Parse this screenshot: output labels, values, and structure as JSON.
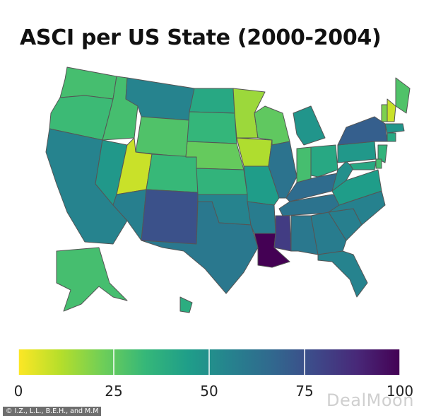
{
  "title": "ASCI per US State (2000-2004)",
  "credit": "© I.Z., L.L., B.E.H., and M.M",
  "watermark": "DealMoon",
  "legend": {
    "min": 0,
    "max": 100,
    "ticks": [
      "0",
      "25",
      "50",
      "75",
      "100"
    ],
    "tick_values": [
      0,
      25,
      50,
      75,
      100
    ]
  },
  "colors": {
    "scale": [
      "#fde725",
      "#b5de2b",
      "#6ece58",
      "#35b779",
      "#1f9e89",
      "#26828e",
      "#31688e",
      "#3e4989",
      "#482878",
      "#440154"
    ],
    "border": "#555555"
  },
  "states": [
    {
      "code": "WA",
      "value": 30
    },
    {
      "code": "OR",
      "value": 32
    },
    {
      "code": "CA",
      "value": 55
    },
    {
      "code": "NV",
      "value": 47
    },
    {
      "code": "ID",
      "value": 30
    },
    {
      "code": "MT",
      "value": 55
    },
    {
      "code": "WY",
      "value": 28
    },
    {
      "code": "UT",
      "value": 8
    },
    {
      "code": "AZ",
      "value": 57
    },
    {
      "code": "CO",
      "value": 33
    },
    {
      "code": "NM",
      "value": 75
    },
    {
      "code": "ND",
      "value": 40
    },
    {
      "code": "SD",
      "value": 34
    },
    {
      "code": "NE",
      "value": 24
    },
    {
      "code": "KS",
      "value": 35
    },
    {
      "code": "OK",
      "value": 55
    },
    {
      "code": "TX",
      "value": 60
    },
    {
      "code": "MN",
      "value": 15
    },
    {
      "code": "IA",
      "value": 12
    },
    {
      "code": "MO",
      "value": 45
    },
    {
      "code": "AR",
      "value": 58
    },
    {
      "code": "LA",
      "value": 100
    },
    {
      "code": "WI",
      "value": 25
    },
    {
      "code": "IL",
      "value": 62
    },
    {
      "code": "MI",
      "value": 48
    },
    {
      "code": "IN",
      "value": 30
    },
    {
      "code": "OH",
      "value": 40
    },
    {
      "code": "KY",
      "value": 65
    },
    {
      "code": "TN",
      "value": 62
    },
    {
      "code": "MS",
      "value": 82
    },
    {
      "code": "AL",
      "value": 60
    },
    {
      "code": "GA",
      "value": 58
    },
    {
      "code": "FL",
      "value": 55
    },
    {
      "code": "SC",
      "value": 57
    },
    {
      "code": "NC",
      "value": 56
    },
    {
      "code": "VA",
      "value": 45
    },
    {
      "code": "WV",
      "value": 50
    },
    {
      "code": "PA",
      "value": 47
    },
    {
      "code": "NY",
      "value": 70
    },
    {
      "code": "ME",
      "value": 28
    },
    {
      "code": "VT",
      "value": 20
    },
    {
      "code": "NH",
      "value": 8
    },
    {
      "code": "MA",
      "value": 48
    },
    {
      "code": "CT",
      "value": 40
    },
    {
      "code": "NJ",
      "value": 35
    },
    {
      "code": "MD",
      "value": 40
    },
    {
      "code": "DE",
      "value": 30
    },
    {
      "code": "AK",
      "value": 30
    },
    {
      "code": "HI",
      "value": 38
    }
  ]
}
